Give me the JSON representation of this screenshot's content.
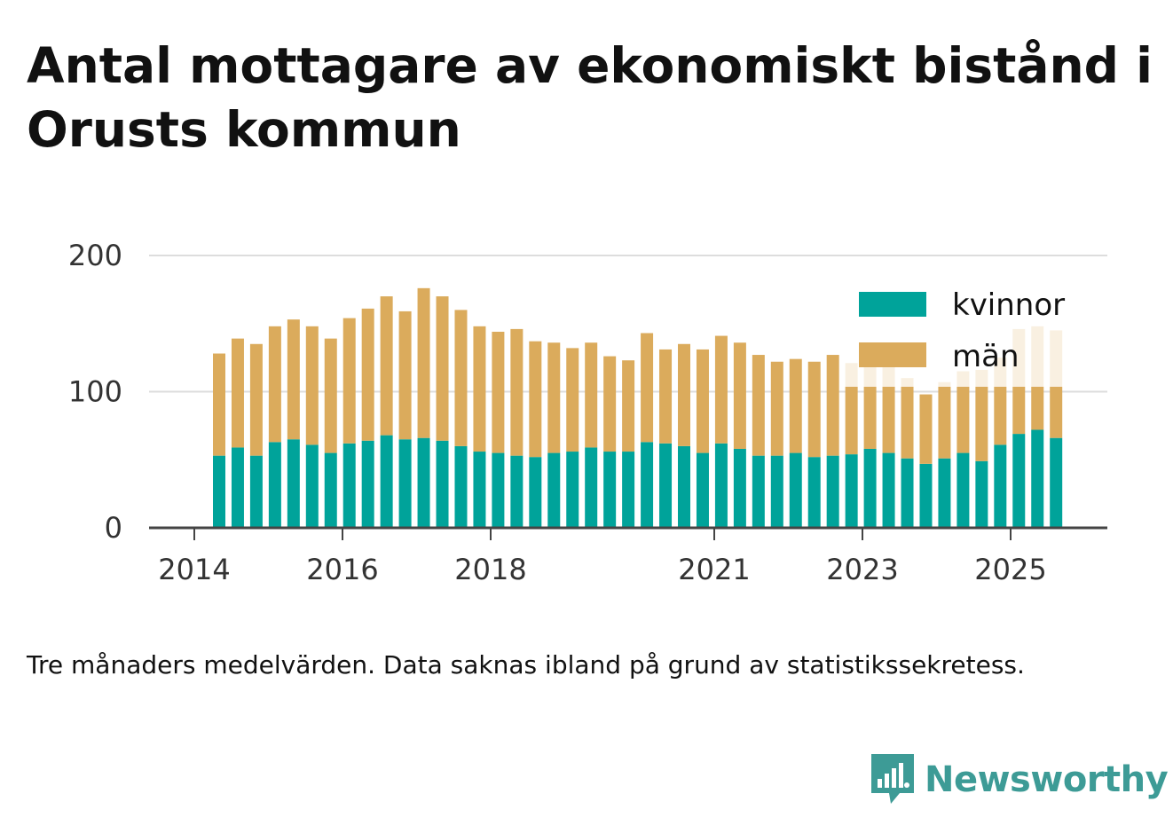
{
  "title": "Antal mottagare av ekonomiskt bistånd i Orusts kommun",
  "note": "Tre månaders medelvärden. Data saknas ibland på grund av statistikssekretess.",
  "logo": {
    "text": "Newsworthy",
    "color": "#3d9b96",
    "icon": "bar-chart-speech-icon"
  },
  "colors": {
    "kvinnor": "#00a39a",
    "man": "#dbab5c",
    "grid": "#dddddd",
    "axis": "#444444"
  },
  "chart_data": {
    "type": "bar",
    "stacked": true,
    "legend_position": "top-right",
    "grid": true,
    "ylim": [
      0,
      200
    ],
    "yticks": [
      "0",
      "100",
      "200"
    ],
    "xticks": [
      "2014",
      "2016",
      "2018",
      "2021",
      "2023",
      "2025"
    ],
    "series": [
      {
        "name": "kvinnor",
        "values": [
          53,
          59,
          53,
          63,
          65,
          61,
          55,
          62,
          64,
          68,
          65,
          66,
          64,
          60,
          56,
          55,
          53,
          52,
          55,
          56,
          59,
          56,
          56,
          63,
          62,
          60,
          55,
          62,
          58,
          53,
          53,
          55,
          52,
          53,
          54,
          58,
          55,
          51,
          47,
          51,
          55,
          49,
          61,
          69,
          72,
          66
        ]
      },
      {
        "name": "män",
        "values": [
          75,
          80,
          82,
          85,
          88,
          87,
          84,
          92,
          97,
          102,
          94,
          110,
          106,
          100,
          92,
          89,
          93,
          85,
          81,
          76,
          77,
          70,
          67,
          80,
          69,
          75,
          76,
          79,
          78,
          74,
          69,
          69,
          70,
          74,
          67,
          66,
          65,
          59,
          51,
          56,
          60,
          67,
          64,
          77,
          76,
          79
        ]
      }
    ]
  }
}
